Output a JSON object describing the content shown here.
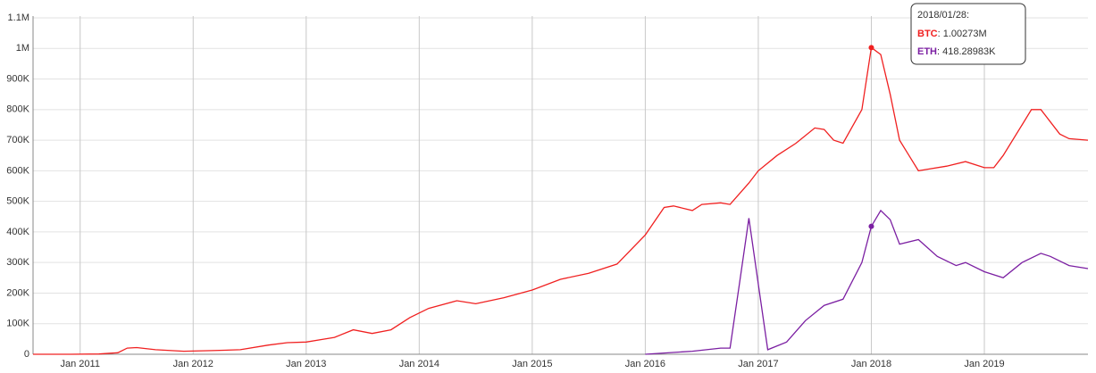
{
  "chart_data": {
    "type": "line",
    "xlim": [
      "2010-08",
      "2019-12"
    ],
    "xticks": [
      {
        "value": "2011-01",
        "label": "Jan 2011"
      },
      {
        "value": "2012-01",
        "label": "Jan 2012"
      },
      {
        "value": "2013-01",
        "label": "Jan 2013"
      },
      {
        "value": "2014-01",
        "label": "Jan 2014"
      },
      {
        "value": "2015-01",
        "label": "Jan 2015"
      },
      {
        "value": "2016-01",
        "label": "Jan 2016"
      },
      {
        "value": "2017-01",
        "label": "Jan 2017"
      },
      {
        "value": "2018-01",
        "label": "Jan 2018"
      },
      {
        "value": "2019-01",
        "label": "Jan 2019"
      }
    ],
    "ylim": [
      0,
      1100000
    ],
    "yticks": [
      0,
      {
        "value": 100000,
        "label": "100K"
      },
      {
        "value": 200000,
        "label": "200K"
      },
      {
        "value": 300000,
        "label": "300K"
      },
      {
        "value": 400000,
        "label": "400K"
      },
      {
        "value": 500000,
        "label": "500K"
      },
      {
        "value": 600000,
        "label": "600K"
      },
      {
        "value": 700000,
        "label": "700K"
      },
      {
        "value": 800000,
        "label": "800K"
      },
      {
        "value": 900000,
        "label": "900K"
      },
      {
        "value": 1000000,
        "label": "1M"
      },
      {
        "value": 1100000,
        "label": "1.1M"
      }
    ],
    "grid": true,
    "series": [
      {
        "name": "BTC",
        "color": "#f02020",
        "x": [
          "2010-08",
          "2010-12",
          "2011-03",
          "2011-05",
          "2011-06",
          "2011-07",
          "2011-09",
          "2011-12",
          "2012-03",
          "2012-06",
          "2012-09",
          "2012-11",
          "2013-01",
          "2013-04",
          "2013-06",
          "2013-08",
          "2013-10",
          "2013-12",
          "2014-02",
          "2014-05",
          "2014-07",
          "2014-10",
          "2015-01",
          "2015-04",
          "2015-07",
          "2015-10",
          "2016-01",
          "2016-03",
          "2016-04",
          "2016-06",
          "2016-07",
          "2016-09",
          "2016-10",
          "2016-12",
          "2017-01",
          "2017-03",
          "2017-05",
          "2017-07",
          "2017-08",
          "2017-09",
          "2017-10",
          "2017-12",
          "2018-01",
          "2018-02",
          "2018-03",
          "2018-04",
          "2018-06",
          "2018-07",
          "2018-09",
          "2018-11",
          "2019-01",
          "2019-02",
          "2019-03",
          "2019-05",
          "2019-06",
          "2019-07",
          "2019-09",
          "2019-10",
          "2019-12"
        ],
        "values": [
          0,
          0,
          1000,
          5000,
          20000,
          22000,
          15000,
          10000,
          12000,
          15000,
          30000,
          38000,
          40000,
          55000,
          80000,
          68000,
          80000,
          120000,
          150000,
          175000,
          165000,
          185000,
          210000,
          245000,
          265000,
          295000,
          390000,
          480000,
          485000,
          470000,
          490000,
          495000,
          490000,
          560000,
          600000,
          650000,
          690000,
          740000,
          735000,
          700000,
          690000,
          800000,
          1002730,
          980000,
          850000,
          700000,
          600000,
          605000,
          615000,
          630000,
          610000,
          610000,
          650000,
          750000,
          800000,
          800000,
          720000,
          705000,
          700000
        ]
      },
      {
        "name": "ETH",
        "color": "#7b1fa2",
        "x": [
          "2016-01",
          "2016-06",
          "2016-09",
          "2016-10",
          "2016-11",
          "2016-12",
          "2017-01",
          "2017-02",
          "2017-04",
          "2017-06",
          "2017-08",
          "2017-10",
          "2017-12",
          "2018-01",
          "2018-02",
          "2018-03",
          "2018-04",
          "2018-06",
          "2018-08",
          "2018-10",
          "2018-11",
          "2019-01",
          "2019-03",
          "2019-05",
          "2019-07",
          "2019-08",
          "2019-10",
          "2019-12"
        ],
        "values": [
          0,
          10000,
          20000,
          20000,
          230000,
          445000,
          230000,
          15000,
          40000,
          110000,
          160000,
          180000,
          300000,
          418289.83,
          470000,
          440000,
          360000,
          375000,
          320000,
          290000,
          300000,
          270000,
          250000,
          300000,
          330000,
          320000,
          290000,
          280000
        ]
      }
    ],
    "tooltip": {
      "date": "2018/01/28:",
      "value_labels": [
        "1.00273M",
        "418.28983K"
      ]
    }
  }
}
